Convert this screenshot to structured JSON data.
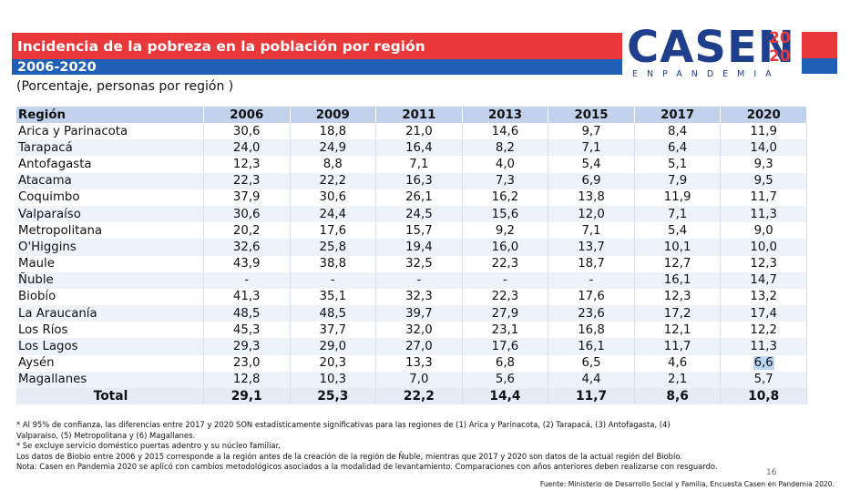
{
  "header": {
    "title": "Incidencia de la pobreza en la población por región",
    "years": "2006-2020",
    "subtitle": "(Porcentaje, personas por región )"
  },
  "logo": {
    "text": "CASEN",
    "year_top": "20",
    "year_bottom": "20",
    "tagline": "ENPANDEMIA"
  },
  "table": {
    "columns": [
      "Región",
      "2006",
      "2009",
      "2011",
      "2013",
      "2015",
      "2017",
      "2020"
    ],
    "rows": [
      [
        "Arica y Parinacota",
        "30,6",
        "18,8",
        "21,0",
        "14,6",
        "9,7",
        "8,4",
        "11,9"
      ],
      [
        "Tarapacá",
        "24,0",
        "24,9",
        "16,4",
        "8,2",
        "7,1",
        "6,4",
        "14,0"
      ],
      [
        "Antofagasta",
        "12,3",
        "8,8",
        "7,1",
        "4,0",
        "5,4",
        "5,1",
        "9,3"
      ],
      [
        "Atacama",
        "22,3",
        "22,2",
        "16,3",
        "7,3",
        "6,9",
        "7,9",
        "9,5"
      ],
      [
        "Coquimbo",
        "37,9",
        "30,6",
        "26,1",
        "16,2",
        "13,8",
        "11,9",
        "11,7"
      ],
      [
        "Valparaíso",
        "30,6",
        "24,4",
        "24,5",
        "15,6",
        "12,0",
        "7,1",
        "11,3"
      ],
      [
        "Metropolitana",
        "20,2",
        "17,6",
        "15,7",
        "9,2",
        "7,1",
        "5,4",
        "9,0"
      ],
      [
        "O'Higgins",
        "32,6",
        "25,8",
        "19,4",
        "16,0",
        "13,7",
        "10,1",
        "10,0"
      ],
      [
        "Maule",
        "43,9",
        "38,8",
        "32,5",
        "22,3",
        "18,7",
        "12,7",
        "12,3"
      ],
      [
        "Ñuble",
        "-",
        "-",
        "-",
        "-",
        "-",
        "16,1",
        "14,7"
      ],
      [
        "Biobío",
        "41,3",
        "35,1",
        "32,3",
        "22,3",
        "17,6",
        "12,3",
        "13,2"
      ],
      [
        "La Araucanía",
        "48,5",
        "48,5",
        "39,7",
        "27,9",
        "23,6",
        "17,2",
        "17,4"
      ],
      [
        "Los Ríos",
        "45,3",
        "37,7",
        "32,0",
        "23,1",
        "16,8",
        "12,1",
        "12,2"
      ],
      [
        "Los Lagos",
        "29,3",
        "29,0",
        "27,0",
        "17,6",
        "16,1",
        "11,7",
        "11,3"
      ],
      [
        "Aysén",
        "23,0",
        "20,3",
        "13,3",
        "6,8",
        "6,5",
        "4,6",
        "6,6"
      ],
      [
        "Magallanes",
        "12,8",
        "10,3",
        "7,0",
        "5,6",
        "4,4",
        "2,1",
        "5,7"
      ]
    ],
    "total": [
      "Total",
      "29,1",
      "25,3",
      "22,2",
      "14,4",
      "11,7",
      "8,6",
      "10,8"
    ]
  },
  "notes": [
    "* Al 95% de confianza, las diferencias entre 2017 y 2020 SON estadísticamente significativas para las regiones de (1) Arica y Parinacota, (2) Tarapacá, (3) Antofagasta, (4)",
    "Valparaíso, (5) Metropolitana y (6) Magallanes.",
    "* Se excluye servicio doméstico puertas adentro y su núcleo familiar.",
    "Los datos de Biobío entre 2006 y 2015 corresponde a la región antes de la creación de la región de Ñuble, mientras que 2017 y 2020 son datos de la actual región del Biobío.",
    "Nota: Casen en Pandemia 2020 se aplicó con cambios metodológicos asociados a la modalidad de levantamiento. Comparaciones con años anteriores deben realizarse con resguardo."
  ],
  "page_number": "16",
  "source": "Fuente: Ministerio de Desarrollo Social y Familia, Encuesta Casen en Pandemia 2020.",
  "colors": {
    "red": "#e8383a",
    "blue": "#1f5fb5",
    "logo_blue": "#1f3f8c",
    "header_row": "#c2d2ec"
  }
}
